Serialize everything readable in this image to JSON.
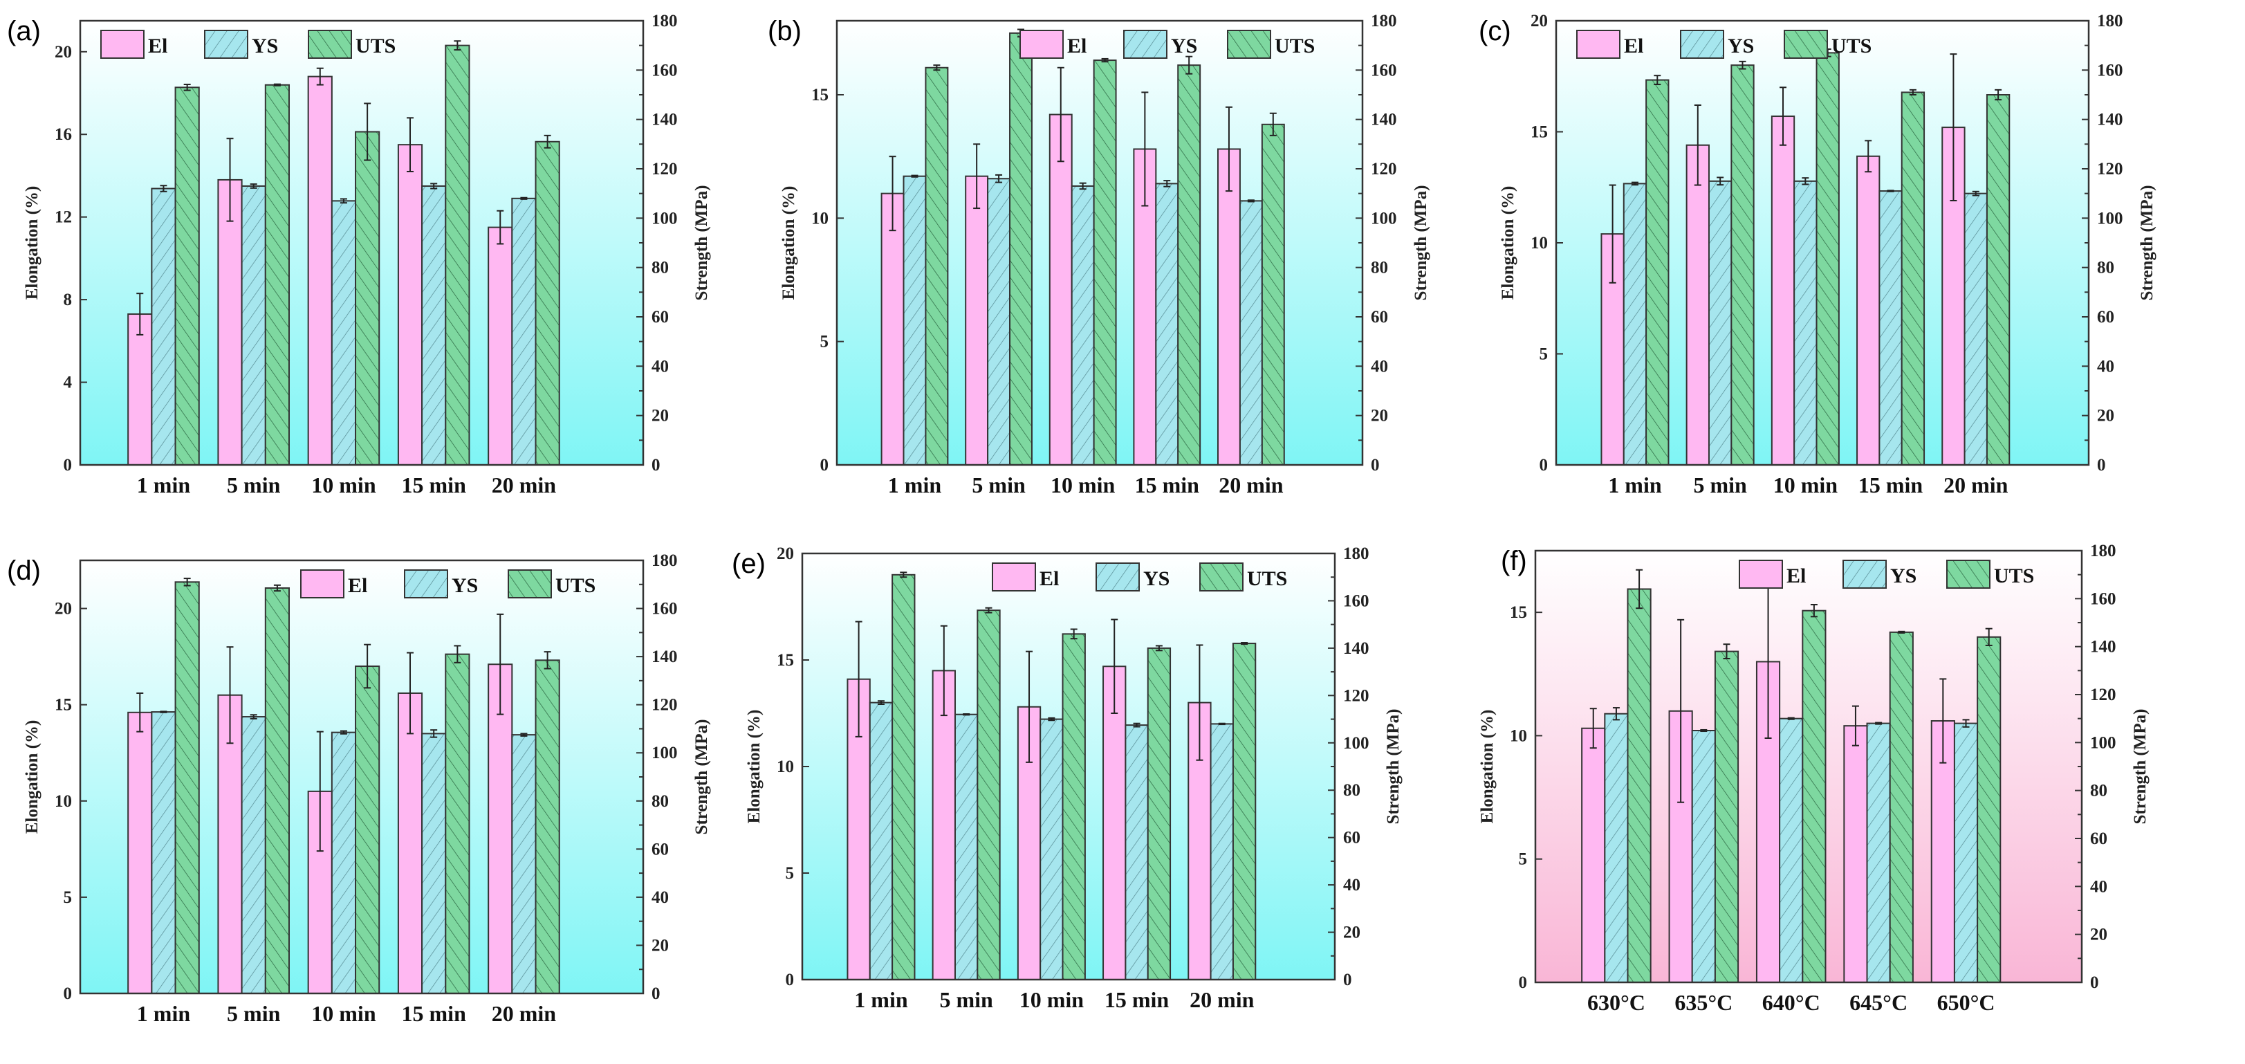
{
  "colors": {
    "El": "#ffb8f2",
    "YS": "#a6e6ee",
    "UTS": "#7ed8a0",
    "bg_cyan": "#7ff5f5",
    "bg_pink": "#f9b6d6"
  },
  "chart_data": [
    {
      "type": "bar",
      "panel": "(a)",
      "categories": [
        "1 min",
        "5 min",
        "10 min",
        "15 min",
        "20 min"
      ],
      "ylabel": "Elongation (%)",
      "y2label": "Strength (MPa)",
      "ylim": [
        0,
        21.5
      ],
      "yticks": [
        "0",
        "4",
        "8",
        "12",
        "16",
        "20"
      ],
      "y2lim": [
        0,
        180
      ],
      "y2ticks": [
        "0",
        "20",
        "40",
        "60",
        "80",
        "100",
        "120",
        "140",
        "160",
        "180"
      ],
      "legend": "top-left",
      "background": "cyan",
      "series": [
        {
          "name": "El",
          "axis": "left",
          "values": [
            7.3,
            13.8,
            18.8,
            15.5,
            11.5
          ],
          "errors": [
            1.0,
            2.0,
            0.4,
            1.3,
            0.8
          ]
        },
        {
          "name": "YS",
          "axis": "right",
          "values": [
            112,
            113,
            107,
            113,
            108
          ],
          "errors": [
            1.2,
            0.8,
            0.8,
            1.0,
            0.3
          ]
        },
        {
          "name": "UTS",
          "axis": "right",
          "values": [
            153,
            154,
            135,
            170,
            131
          ],
          "errors": [
            1.2,
            0.3,
            11.5,
            1.8,
            2.5
          ]
        }
      ]
    },
    {
      "type": "bar",
      "panel": "(b)",
      "categories": [
        "1 min",
        "5 min",
        "10 min",
        "15 min",
        "20 min"
      ],
      "ylabel": "Elongation (%)",
      "y2label": "Strength (MPa)",
      "ylim": [
        0,
        18
      ],
      "yticks": [
        "0",
        "5",
        "10",
        "15"
      ],
      "y2lim": [
        0,
        180
      ],
      "y2ticks": [
        "0",
        "20",
        "40",
        "60",
        "80",
        "100",
        "120",
        "140",
        "160",
        "180"
      ],
      "legend": "top-right",
      "background": "cyan",
      "series": [
        {
          "name": "El",
          "axis": "left",
          "values": [
            11.0,
            11.7,
            14.2,
            12.8,
            12.8
          ],
          "errors": [
            1.5,
            1.3,
            1.9,
            2.3,
            1.7
          ]
        },
        {
          "name": "YS",
          "axis": "right",
          "values": [
            117,
            116,
            113,
            114,
            107
          ],
          "errors": [
            0.3,
            1.5,
            1.2,
            1.2,
            0.3
          ]
        },
        {
          "name": "UTS",
          "axis": "right",
          "values": [
            161,
            175,
            164,
            162,
            138
          ],
          "errors": [
            1.0,
            1.5,
            0.6,
            3.5,
            4.5
          ]
        }
      ]
    },
    {
      "type": "bar",
      "panel": "(c)",
      "categories": [
        "1 min",
        "5 min",
        "10 min",
        "15 min",
        "20 min"
      ],
      "ylabel": "Elongation (%)",
      "y2label": "Strength (MPa)",
      "ylim": [
        0,
        20
      ],
      "yticks": [
        "0",
        "5",
        "10",
        "15",
        "20"
      ],
      "y2lim": [
        0,
        180
      ],
      "y2ticks": [
        "0",
        "20",
        "40",
        "60",
        "80",
        "100",
        "120",
        "140",
        "160",
        "180"
      ],
      "legend": "top-left",
      "background": "cyan",
      "series": [
        {
          "name": "El",
          "axis": "left",
          "values": [
            10.4,
            14.4,
            15.7,
            13.9,
            15.2
          ],
          "errors": [
            2.2,
            1.8,
            1.3,
            0.7,
            3.3
          ]
        },
        {
          "name": "YS",
          "axis": "right",
          "values": [
            114,
            115,
            115,
            111,
            110
          ],
          "errors": [
            0.5,
            1.5,
            1.3,
            0.2,
            0.8
          ]
        },
        {
          "name": "UTS",
          "axis": "right",
          "values": [
            156,
            162,
            167,
            151,
            150
          ],
          "errors": [
            1.8,
            1.5,
            1.5,
            1.0,
            2.0
          ]
        }
      ]
    },
    {
      "type": "bar",
      "panel": "(d)",
      "categories": [
        "1 min",
        "5 min",
        "10 min",
        "15 min",
        "20 min"
      ],
      "ylabel": "Elongation (%)",
      "y2label": "Strength (MPa)",
      "ylim": [
        0,
        22.5
      ],
      "yticks": [
        "0",
        "5",
        "10",
        "15",
        "20"
      ],
      "y2lim": [
        0,
        180
      ],
      "y2ticks": [
        "0",
        "20",
        "40",
        "60",
        "80",
        "100",
        "120",
        "140",
        "160",
        "180"
      ],
      "legend": "top-right",
      "background": "cyan",
      "series": [
        {
          "name": "El",
          "axis": "left",
          "values": [
            14.6,
            15.5,
            10.5,
            15.6,
            17.1
          ],
          "errors": [
            1.0,
            2.5,
            3.1,
            2.1,
            2.6
          ]
        },
        {
          "name": "YS",
          "axis": "right",
          "values": [
            117,
            115,
            108.5,
            108,
            107.5
          ],
          "errors": [
            0.2,
            0.8,
            0.6,
            1.5,
            0.5
          ]
        },
        {
          "name": "UTS",
          "axis": "right",
          "values": [
            171,
            168.5,
            136,
            141,
            138.5
          ],
          "errors": [
            1.5,
            1.2,
            9.0,
            3.5,
            3.5
          ]
        }
      ]
    },
    {
      "type": "bar",
      "panel": "(e)",
      "categories": [
        "1 min",
        "5 min",
        "10 min",
        "15 min",
        "20 min"
      ],
      "ylabel": "Elongation (%)",
      "y2label": "Strength (MPa)",
      "ylim": [
        0,
        20
      ],
      "yticks": [
        "0",
        "5",
        "10",
        "15",
        "20"
      ],
      "y2lim": [
        0,
        180
      ],
      "y2ticks": [
        "0",
        "20",
        "40",
        "60",
        "80",
        "100",
        "120",
        "140",
        "160",
        "180"
      ],
      "legend": "top-right",
      "background": "cyan",
      "series": [
        {
          "name": "El",
          "axis": "left",
          "values": [
            14.1,
            14.5,
            12.8,
            14.7,
            13.0
          ],
          "errors": [
            2.7,
            2.1,
            2.6,
            2.2,
            2.7
          ]
        },
        {
          "name": "YS",
          "axis": "right",
          "values": [
            117,
            112,
            110,
            107.5,
            108
          ],
          "errors": [
            0.7,
            0.2,
            0.5,
            0.7,
            0.2
          ]
        },
        {
          "name": "UTS",
          "axis": "right",
          "values": [
            171,
            156,
            146,
            140,
            142
          ],
          "errors": [
            1.0,
            1.0,
            2.0,
            1.0,
            0.3
          ]
        }
      ]
    },
    {
      "type": "bar",
      "panel": "(f)",
      "categories": [
        "630°C",
        "635°C",
        "640°C",
        "645°C",
        "650°C"
      ],
      "ylabel": "Elongation (%)",
      "y2label": "Strength (MPa)",
      "ylim": [
        0,
        17.5
      ],
      "yticks": [
        "0",
        "5",
        "10",
        "15"
      ],
      "y2lim": [
        0,
        180
      ],
      "y2ticks": [
        "0",
        "20",
        "40",
        "60",
        "80",
        "100",
        "120",
        "140",
        "160",
        "180"
      ],
      "legend": "top-right",
      "background": "pink",
      "series": [
        {
          "name": "El",
          "axis": "left",
          "values": [
            10.3,
            11.0,
            13.0,
            10.4,
            10.6
          ],
          "errors": [
            0.8,
            3.7,
            3.1,
            0.8,
            1.7
          ]
        },
        {
          "name": "YS",
          "axis": "right",
          "values": [
            112,
            105,
            110,
            108,
            108
          ],
          "errors": [
            2.5,
            0.3,
            0.3,
            0.3,
            1.5
          ]
        },
        {
          "name": "UTS",
          "axis": "right",
          "values": [
            164,
            138,
            155,
            146,
            144
          ],
          "errors": [
            8.0,
            3.0,
            2.5,
            0.3,
            3.5
          ]
        }
      ]
    }
  ]
}
